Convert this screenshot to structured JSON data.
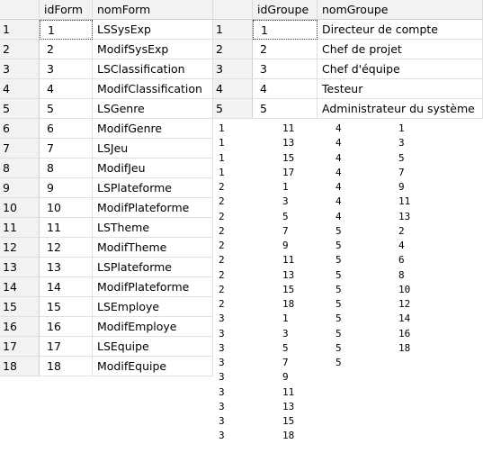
{
  "left_grid": {
    "columns": [
      "idForm",
      "nomForm"
    ],
    "rows": [
      {
        "n": "1",
        "id": "1",
        "name": "LSSysExp"
      },
      {
        "n": "2",
        "id": "2",
        "name": "ModifSysExp"
      },
      {
        "n": "3",
        "id": "3",
        "name": "LSClassification"
      },
      {
        "n": "4",
        "id": "4",
        "name": "ModifClassification"
      },
      {
        "n": "5",
        "id": "5",
        "name": "LSGenre"
      },
      {
        "n": "6",
        "id": "6",
        "name": "ModifGenre"
      },
      {
        "n": "7",
        "id": "7",
        "name": "LSJeu"
      },
      {
        "n": "8",
        "id": "8",
        "name": "ModifJeu"
      },
      {
        "n": "9",
        "id": "9",
        "name": "LSPlateforme"
      },
      {
        "n": "10",
        "id": "10",
        "name": "ModifPlateforme"
      },
      {
        "n": "11",
        "id": "11",
        "name": "LSTheme"
      },
      {
        "n": "12",
        "id": "12",
        "name": "ModifTheme"
      },
      {
        "n": "13",
        "id": "13",
        "name": "LSPlateforme"
      },
      {
        "n": "14",
        "id": "14",
        "name": "ModifPlateforme"
      },
      {
        "n": "15",
        "id": "15",
        "name": "LSEmploye"
      },
      {
        "n": "16",
        "id": "16",
        "name": "ModifEmploye"
      },
      {
        "n": "17",
        "id": "17",
        "name": "LSEquipe"
      },
      {
        "n": "18",
        "id": "18",
        "name": "ModifEquipe"
      }
    ]
  },
  "right_grid": {
    "columns": [
      "idGroupe",
      "nomGroupe"
    ],
    "rows": [
      {
        "n": "1",
        "id": "1",
        "name": "Directeur de compte"
      },
      {
        "n": "2",
        "id": "2",
        "name": "Chef de projet"
      },
      {
        "n": "3",
        "id": "3",
        "name": "Chef d'équipe"
      },
      {
        "n": "4",
        "id": "4",
        "name": "Testeur"
      },
      {
        "n": "5",
        "id": "5",
        "name": "Administrateur du système"
      }
    ]
  },
  "text_col_a": [
    "1",
    "1",
    "1",
    "1",
    "2",
    "2",
    "2",
    "2",
    "2",
    "2",
    "2",
    "2",
    "2",
    "3",
    "3",
    "3",
    "3",
    "3",
    "3",
    "3",
    "3",
    "3"
  ],
  "text_col_b": [
    "11",
    "13",
    "15",
    "17",
    "1",
    "3",
    "5",
    "7",
    "9",
    "11",
    "13",
    "15",
    "18",
    "1",
    "3",
    "5",
    "7",
    "9",
    "11",
    "13",
    "15",
    "18"
  ],
  "text_col_c": [
    "4",
    "4",
    "4",
    "4",
    "4",
    "4",
    "4",
    "5",
    "5",
    "5",
    "5",
    "5",
    "5",
    "5",
    "5",
    "5",
    "5"
  ],
  "text_col_d": [
    "1",
    "3",
    "5",
    "7",
    "9",
    "11",
    "13",
    "2",
    "4",
    "6",
    "8",
    "10",
    "12",
    "14",
    "16",
    "18"
  ]
}
